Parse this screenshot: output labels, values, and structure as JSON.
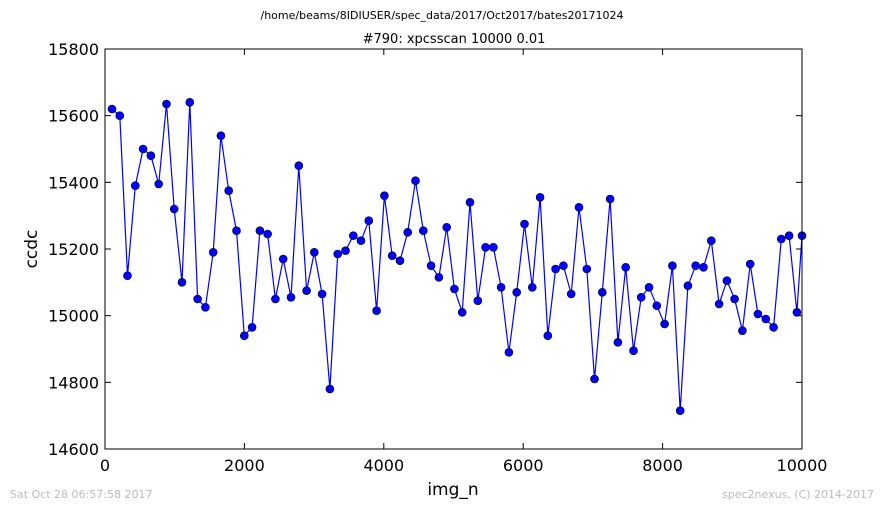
{
  "page": {
    "path_title": "/home/beams/8IDIUSER/spec_data/2017/Oct2017/bates20171024",
    "footer_left": "Sat Oct 28 06:57:58 2017",
    "footer_right": "spec2nexus, (C) 2014-2017"
  },
  "chart_data": {
    "type": "line",
    "title": "#790: xpcsscan 10000 0.01",
    "xlabel": "img_n",
    "ylabel": "ccdc",
    "xlim": [
      0,
      10000
    ],
    "ylim": [
      14600,
      15800
    ],
    "xticks": [
      0,
      2000,
      4000,
      6000,
      8000,
      10000
    ],
    "yticks": [
      14600,
      14800,
      15000,
      15200,
      15400,
      15600,
      15800
    ],
    "grid": false,
    "marker": "circle",
    "line_color": "#0000ff",
    "marker_color": "#0000ff",
    "series": [
      {
        "x": [
          100,
          212,
          323,
          435,
          547,
          658,
          770,
          882,
          993,
          1105,
          1217,
          1328,
          1440,
          1552,
          1663,
          1775,
          1887,
          1998,
          2110,
          2222,
          2333,
          2445,
          2557,
          2668,
          2780,
          2892,
          3003,
          3115,
          3227,
          3338,
          3450,
          3562,
          3673,
          3785,
          3897,
          4008,
          4120,
          4232,
          4343,
          4455,
          4567,
          4678,
          4790,
          4902,
          5013,
          5125,
          5237,
          5348,
          5460,
          5572,
          5683,
          5795,
          5907,
          6018,
          6130,
          6242,
          6353,
          6465,
          6577,
          6688,
          6800,
          6912,
          7023,
          7135,
          7247,
          7358,
          7470,
          7582,
          7693,
          7805,
          7917,
          8028,
          8140,
          8252,
          8363,
          8475,
          8587,
          8698,
          8810,
          8922,
          9033,
          9145,
          9257,
          9368,
          9480,
          9592,
          9703,
          9815,
          9927,
          10000
        ],
        "y": [
          15620,
          15600,
          15120,
          15390,
          15500,
          15480,
          15395,
          15635,
          15320,
          15100,
          15640,
          15050,
          15025,
          15190,
          15540,
          15375,
          15255,
          14940,
          14965,
          15255,
          15245,
          15050,
          15170,
          15055,
          15450,
          15075,
          15190,
          15065,
          14780,
          15185,
          15195,
          15240,
          15225,
          15285,
          15015,
          15360,
          15180,
          15165,
          15250,
          15405,
          15255,
          15150,
          15115,
          15265,
          15080,
          15010,
          15340,
          15045,
          15205,
          15205,
          15085,
          14890,
          15070,
          15275,
          15085,
          15355,
          14940,
          15140,
          15150,
          15065,
          15325,
          15140,
          14810,
          15070,
          15350,
          14920,
          15145,
          14895,
          15055,
          15085,
          15030,
          14975,
          15150,
          14715,
          15090,
          15150,
          15145,
          15225,
          15035,
          15105,
          15050,
          14955,
          15155,
          15005,
          14990,
          14965,
          15230,
          15240,
          15010,
          15240
        ]
      }
    ]
  }
}
